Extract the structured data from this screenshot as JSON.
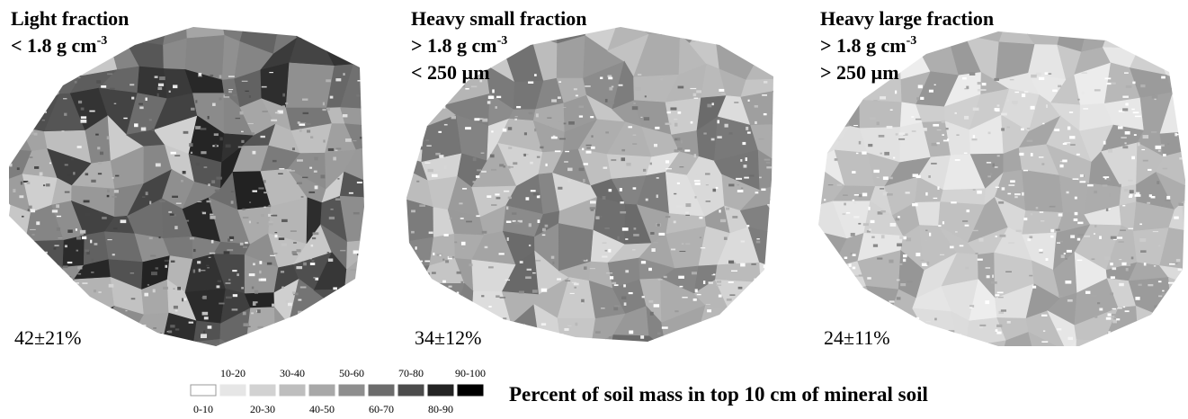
{
  "panels": [
    {
      "lines": [
        {
          "text": "Light fraction"
        },
        {
          "text": "< 1.8 g cm",
          "sup": "-3"
        }
      ],
      "stat": "42±21%"
    },
    {
      "lines": [
        {
          "text": "Heavy small fraction"
        },
        {
          "text": "> 1.8 g cm",
          "sup": "-3"
        },
        {
          "text": "< 250 µm"
        }
      ],
      "stat": "34±12%"
    },
    {
      "lines": [
        {
          "text": "Heavy large fraction"
        },
        {
          "text": "> 1.8 g cm",
          "sup": "-3"
        },
        {
          "text": "> 250 µm"
        }
      ],
      "stat": "24±11%"
    }
  ],
  "legend": {
    "title": "Percent of soil mass in top 10 cm of mineral soil",
    "classes": [
      {
        "label": "0-10",
        "color": "#ffffff"
      },
      {
        "label": "10-20",
        "color": "#e6e6e6"
      },
      {
        "label": "20-30",
        "color": "#d2d2d2"
      },
      {
        "label": "30-40",
        "color": "#bebebe"
      },
      {
        "label": "40-50",
        "color": "#a8a8a8"
      },
      {
        "label": "50-60",
        "color": "#8e8e8e"
      },
      {
        "label": "60-70",
        "color": "#6c6c6c"
      },
      {
        "label": "70-80",
        "color": "#4c4c4c"
      },
      {
        "label": "80-90",
        "color": "#242424"
      },
      {
        "label": "90-100",
        "color": "#000000"
      }
    ]
  }
}
